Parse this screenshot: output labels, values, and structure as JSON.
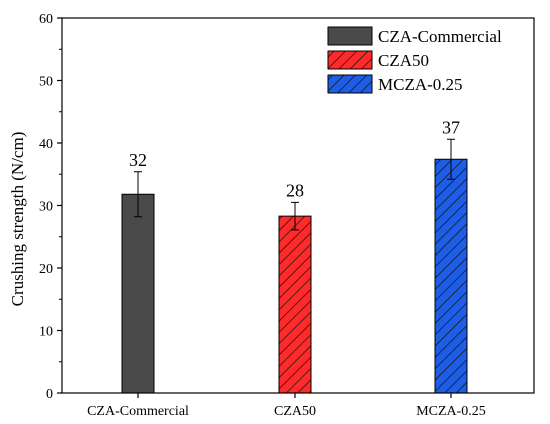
{
  "chart_data": {
    "type": "bar",
    "title": "",
    "xlabel": "",
    "ylabel": "Crushing strength (N/cm)",
    "ylim": [
      0,
      60
    ],
    "yticks": [
      0,
      10,
      20,
      30,
      40,
      50,
      60
    ],
    "categories": [
      "CZA-Commercial",
      "CZA50",
      "MCZA-0.25"
    ],
    "values": [
      31.8,
      28.3,
      37.4
    ],
    "error": [
      3.6,
      2.2,
      3.2
    ],
    "data_labels": [
      "32",
      "28",
      "37"
    ],
    "colors": [
      "#4a4a4a",
      "#ff2a2a",
      "#1e5de6"
    ],
    "hatch": [
      "none",
      "diagonal",
      "diagonal"
    ],
    "legend": {
      "position": "top-right",
      "entries": [
        "CZA-Commercial",
        "CZA50",
        "MCZA-0.25"
      ]
    },
    "grid": false
  }
}
